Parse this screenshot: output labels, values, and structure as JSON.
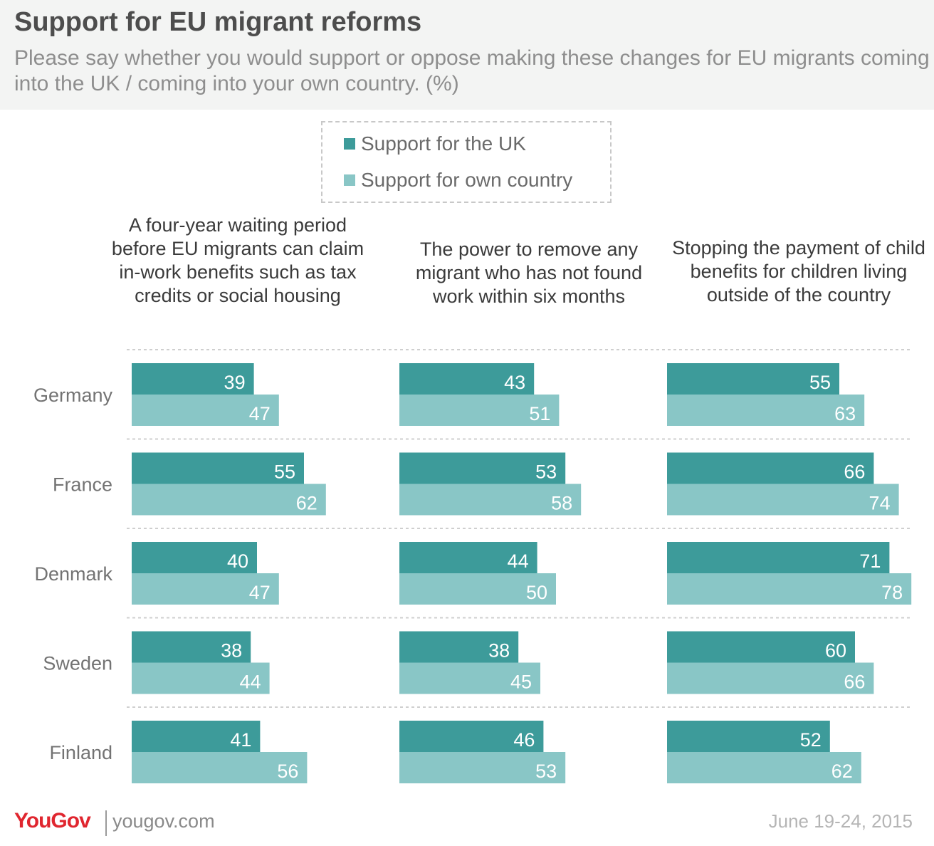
{
  "title": "Support for EU migrant reforms",
  "subtitle": "Please say whether you would support or oppose making these changes for EU migrants coming into the UK / coming into your own country. (%)",
  "colors": {
    "uk": "#3d9b9a",
    "own": "#89c6c6",
    "header_bg": "#f3f4f3"
  },
  "legend": [
    {
      "label": "Support for the UK",
      "color": "#3d9b9a"
    },
    {
      "label": "Support for own country",
      "color": "#89c6c6"
    }
  ],
  "chart_data": {
    "type": "bar",
    "orientation": "horizontal",
    "title": "Support for EU migrant reforms",
    "categories": [
      "Germany",
      "France",
      "Denmark",
      "Sweden",
      "Finland"
    ],
    "xlim": [
      0,
      100
    ],
    "grid": false,
    "legend_position": "top-center",
    "panels": [
      {
        "title": "A four-year waiting period before EU migrants can claim in-work benefits such as tax credits or social housing",
        "series": [
          {
            "name": "Support for the UK",
            "values": [
              39,
              55,
              40,
              38,
              41
            ]
          },
          {
            "name": "Support for own country",
            "values": [
              47,
              62,
              47,
              44,
              56
            ]
          }
        ]
      },
      {
        "title": "The power to remove any migrant who has not found work within six months",
        "series": [
          {
            "name": "Support for the UK",
            "values": [
              43,
              53,
              44,
              38,
              46
            ]
          },
          {
            "name": "Support for own country",
            "values": [
              51,
              58,
              50,
              45,
              53
            ]
          }
        ]
      },
      {
        "title": "Stopping the payment of child benefits for children living outside of the country",
        "series": [
          {
            "name": "Support for the UK",
            "values": [
              55,
              66,
              71,
              60,
              52
            ]
          },
          {
            "name": "Support for own country",
            "values": [
              63,
              74,
              78,
              66,
              62
            ]
          }
        ]
      }
    ]
  },
  "footer": {
    "logo": "YouGov",
    "url": "yougov.com",
    "date": "June 19-24, 2015"
  }
}
